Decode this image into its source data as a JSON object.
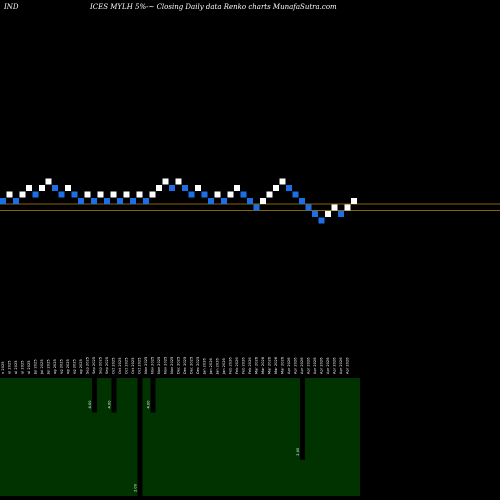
{
  "header": {
    "left_label": "IND",
    "title": "ICES MYLH 5%-~ Closing Daily data Renko charts MunafaSutra.com"
  },
  "colors": {
    "background": "#000000",
    "up_brick": "#ffffff",
    "down_brick": "#1e6ee6",
    "reference_line": "#b8860b",
    "volume_panel": "#003300",
    "volume_bar": "#000000",
    "tick_text": "#ffffff"
  },
  "chart_data": {
    "type": "renko",
    "grid": false,
    "reference_lines": [
      1.0,
      0.0
    ],
    "bricks": [
      {
        "d": "down",
        "y": 1
      },
      {
        "d": "up",
        "y": 2
      },
      {
        "d": "down",
        "y": 1
      },
      {
        "d": "up",
        "y": 2
      },
      {
        "d": "up",
        "y": 3
      },
      {
        "d": "down",
        "y": 2
      },
      {
        "d": "up",
        "y": 3
      },
      {
        "d": "up",
        "y": 4
      },
      {
        "d": "down",
        "y": 3
      },
      {
        "d": "down",
        "y": 2
      },
      {
        "d": "up",
        "y": 3
      },
      {
        "d": "down",
        "y": 2
      },
      {
        "d": "down",
        "y": 1
      },
      {
        "d": "up",
        "y": 2
      },
      {
        "d": "down",
        "y": 1
      },
      {
        "d": "up",
        "y": 2
      },
      {
        "d": "down",
        "y": 1
      },
      {
        "d": "up",
        "y": 2
      },
      {
        "d": "down",
        "y": 1
      },
      {
        "d": "up",
        "y": 2
      },
      {
        "d": "down",
        "y": 1
      },
      {
        "d": "up",
        "y": 2
      },
      {
        "d": "down",
        "y": 1
      },
      {
        "d": "up",
        "y": 2
      },
      {
        "d": "up",
        "y": 3
      },
      {
        "d": "up",
        "y": 4
      },
      {
        "d": "down",
        "y": 3
      },
      {
        "d": "up",
        "y": 4
      },
      {
        "d": "down",
        "y": 3
      },
      {
        "d": "down",
        "y": 2
      },
      {
        "d": "up",
        "y": 3
      },
      {
        "d": "down",
        "y": 2
      },
      {
        "d": "down",
        "y": 1
      },
      {
        "d": "up",
        "y": 2
      },
      {
        "d": "down",
        "y": 1
      },
      {
        "d": "up",
        "y": 2
      },
      {
        "d": "up",
        "y": 3
      },
      {
        "d": "down",
        "y": 2
      },
      {
        "d": "down",
        "y": 1
      },
      {
        "d": "down",
        "y": 0
      },
      {
        "d": "up",
        "y": 1
      },
      {
        "d": "up",
        "y": 2
      },
      {
        "d": "up",
        "y": 3
      },
      {
        "d": "up",
        "y": 4
      },
      {
        "d": "down",
        "y": 3
      },
      {
        "d": "down",
        "y": 2
      },
      {
        "d": "down",
        "y": 1
      },
      {
        "d": "down",
        "y": 0
      },
      {
        "d": "down",
        "y": -1
      },
      {
        "d": "down",
        "y": -2
      },
      {
        "d": "up",
        "y": -1
      },
      {
        "d": "up",
        "y": 0
      },
      {
        "d": "down",
        "y": -1
      },
      {
        "d": "up",
        "y": 0
      },
      {
        "d": "up",
        "y": 1
      }
    ],
    "date_labels": [
      "n 2025",
      "ul 2025",
      "ul 2025",
      "ul 2025",
      "ul 2025",
      "Jul 2025",
      "Jul 2025",
      "Jul 2025",
      "ug 2025",
      "ug 2025",
      "ug 2025",
      "ug 2025",
      "ug 2025",
      "Sep 2025",
      "Sep 2025",
      "Sep 2025",
      "Sep 2025",
      "Oct 2025",
      "Oct 2025",
      "Oct 2025",
      "Oct 2025",
      "Oct 2025",
      "Nov 2025",
      "Nov 2025",
      "Nov 2025",
      "Nov 2025",
      "Nov 2025",
      "Dec 2025",
      "Dec 2025",
      "Dec 2025",
      "Dec 2025",
      "Jan 2026",
      "Jan 2026",
      "Jan 2026",
      "Jan 2026",
      "Feb 2026",
      "Feb 2026",
      "Feb 2026",
      "Feb 2026",
      "Mar 2026",
      "Mar 2026",
      "Mar 2026",
      "Mar 2026",
      "Mar 2026",
      "Apr 2026",
      "Apr 2026",
      "Apr 2026",
      "Apr 2026",
      "Apr 2026",
      "Apr 2026",
      "Apr 2026",
      "Apr 2026",
      "Apr 2026",
      "Apr 2026"
    ],
    "volume_bars": [
      {
        "index": 14,
        "value": 19,
        "label": "4.00"
      },
      {
        "index": 17,
        "value": 19,
        "label": "4.00"
      },
      {
        "index": 21,
        "value": 65,
        "label": "2.00"
      },
      {
        "index": 23,
        "value": 19,
        "label": "4.00"
      },
      {
        "index": 46,
        "value": 45,
        "label": "2.00"
      }
    ],
    "volume_max": 65
  }
}
